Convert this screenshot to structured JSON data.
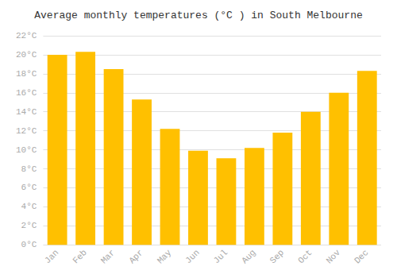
{
  "chart_data": {
    "type": "bar",
    "title": "Average monthly temperatures (°C ) in South Melbourne",
    "categories": [
      "Jan",
      "Feb",
      "Mar",
      "Apr",
      "May",
      "Jun",
      "Jul",
      "Aug",
      "Sep",
      "Oct",
      "Nov",
      "Dec"
    ],
    "values": [
      20.0,
      20.3,
      18.5,
      15.3,
      12.2,
      9.9,
      9.1,
      10.2,
      11.8,
      14.0,
      16.0,
      18.3
    ],
    "color": "#FFC000",
    "ylim": [
      0,
      22
    ],
    "yticks": [
      {
        "value": 0,
        "label": "0°C"
      },
      {
        "value": 2,
        "label": "2°C"
      },
      {
        "value": 4,
        "label": "4°C"
      },
      {
        "value": 6,
        "label": "6°C"
      },
      {
        "value": 8,
        "label": "8°C"
      },
      {
        "value": 10,
        "label": "10°C"
      },
      {
        "value": 12,
        "label": "12°C"
      },
      {
        "value": 14,
        "label": "14°C"
      },
      {
        "value": 16,
        "label": "16°C"
      },
      {
        "value": 18,
        "label": "18°C"
      },
      {
        "value": 20,
        "label": "20°C"
      },
      {
        "value": 22,
        "label": "22°C"
      }
    ],
    "grid": true
  }
}
